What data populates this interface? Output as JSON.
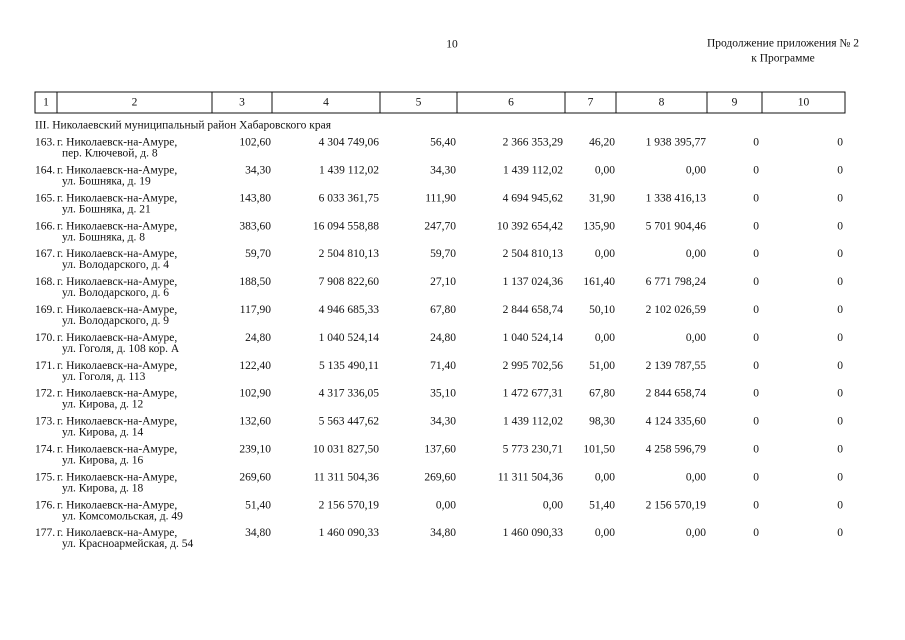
{
  "header": {
    "page_number": "10",
    "note_line1": "Продолжение приложения № 2",
    "note_line2": "к Программе"
  },
  "table": {
    "columns": [
      "1",
      "2",
      "3",
      "4",
      "5",
      "6",
      "7",
      "8",
      "9",
      "10"
    ],
    "section": "III. Николаевский муниципальный район Хабаровского края",
    "rows": [
      [
        "163.",
        "г. Николаевск-на-Амуре,",
        "пер. Ключевой, д. 8",
        "102,60",
        "4 304 749,06",
        "56,40",
        "2 366 353,29",
        "46,20",
        "1 938 395,77",
        "0",
        "0"
      ],
      [
        "164.",
        "г. Николаевск-на-Амуре,",
        "ул. Бошняка, д. 19",
        "34,30",
        "1 439 112,02",
        "34,30",
        "1 439 112,02",
        "0,00",
        "0,00",
        "0",
        "0"
      ],
      [
        "165.",
        "г. Николаевск-на-Амуре,",
        "ул. Бошняка, д. 21",
        "143,80",
        "6 033 361,75",
        "111,90",
        "4 694 945,62",
        "31,90",
        "1 338 416,13",
        "0",
        "0"
      ],
      [
        "166.",
        "г. Николаевск-на-Амуре,",
        "ул. Бошняка, д. 8",
        "383,60",
        "16 094 558,88",
        "247,70",
        "10 392 654,42",
        "135,90",
        "5 701 904,46",
        "0",
        "0"
      ],
      [
        "167.",
        "г. Николаевск-на-Амуре,",
        "ул. Володарского, д. 4",
        "59,70",
        "2 504 810,13",
        "59,70",
        "2 504 810,13",
        "0,00",
        "0,00",
        "0",
        "0"
      ],
      [
        "168.",
        "г. Николаевск-на-Амуре,",
        "ул. Володарского, д. 6",
        "188,50",
        "7 908 822,60",
        "27,10",
        "1 137 024,36",
        "161,40",
        "6 771 798,24",
        "0",
        "0"
      ],
      [
        "169.",
        "г. Николаевск-на-Амуре,",
        "ул. Володарского, д. 9",
        "117,90",
        "4 946 685,33",
        "67,80",
        "2 844 658,74",
        "50,10",
        "2 102 026,59",
        "0",
        "0"
      ],
      [
        "170.",
        "г. Николаевск-на-Амуре,",
        "ул. Гоголя, д. 108 кор. А",
        "24,80",
        "1 040 524,14",
        "24,80",
        "1 040 524,14",
        "0,00",
        "0,00",
        "0",
        "0"
      ],
      [
        "171.",
        "г. Николаевск-на-Амуре,",
        "ул. Гоголя, д. 113",
        "122,40",
        "5 135 490,11",
        "71,40",
        "2 995 702,56",
        "51,00",
        "2 139 787,55",
        "0",
        "0"
      ],
      [
        "172.",
        "г. Николаевск-на-Амуре,",
        "ул. Кирова, д. 12",
        "102,90",
        "4 317 336,05",
        "35,10",
        "1 472 677,31",
        "67,80",
        "2 844 658,74",
        "0",
        "0"
      ],
      [
        "173.",
        "г. Николаевск-на-Амуре,",
        "ул. Кирова, д. 14",
        "132,60",
        "5 563 447,62",
        "34,30",
        "1 439 112,02",
        "98,30",
        "4 124 335,60",
        "0",
        "0"
      ],
      [
        "174.",
        "г. Николаевск-на-Амуре,",
        "ул. Кирова, д. 16",
        "239,10",
        "10 031 827,50",
        "137,60",
        "5 773 230,71",
        "101,50",
        "4 258 596,79",
        "0",
        "0"
      ],
      [
        "175.",
        "г. Николаевск-на-Амуре,",
        "ул. Кирова, д. 18",
        "269,60",
        "11 311 504,36",
        "269,60",
        "11 311 504,36",
        "0,00",
        "0,00",
        "0",
        "0"
      ],
      [
        "176.",
        "г. Николаевск-на-Амуре,",
        "ул. Комсомольская, д. 49",
        "51,40",
        "2 156 570,19",
        "0,00",
        "0,00",
        "51,40",
        "2 156 570,19",
        "0",
        "0"
      ],
      [
        "177.",
        "г. Николаевск-на-Амуре,",
        "ул. Красноармейская, д. 54",
        "34,80",
        "1 460 090,33",
        "34,80",
        "1 460 090,33",
        "0,00",
        "0,00",
        "0",
        "0"
      ]
    ]
  }
}
